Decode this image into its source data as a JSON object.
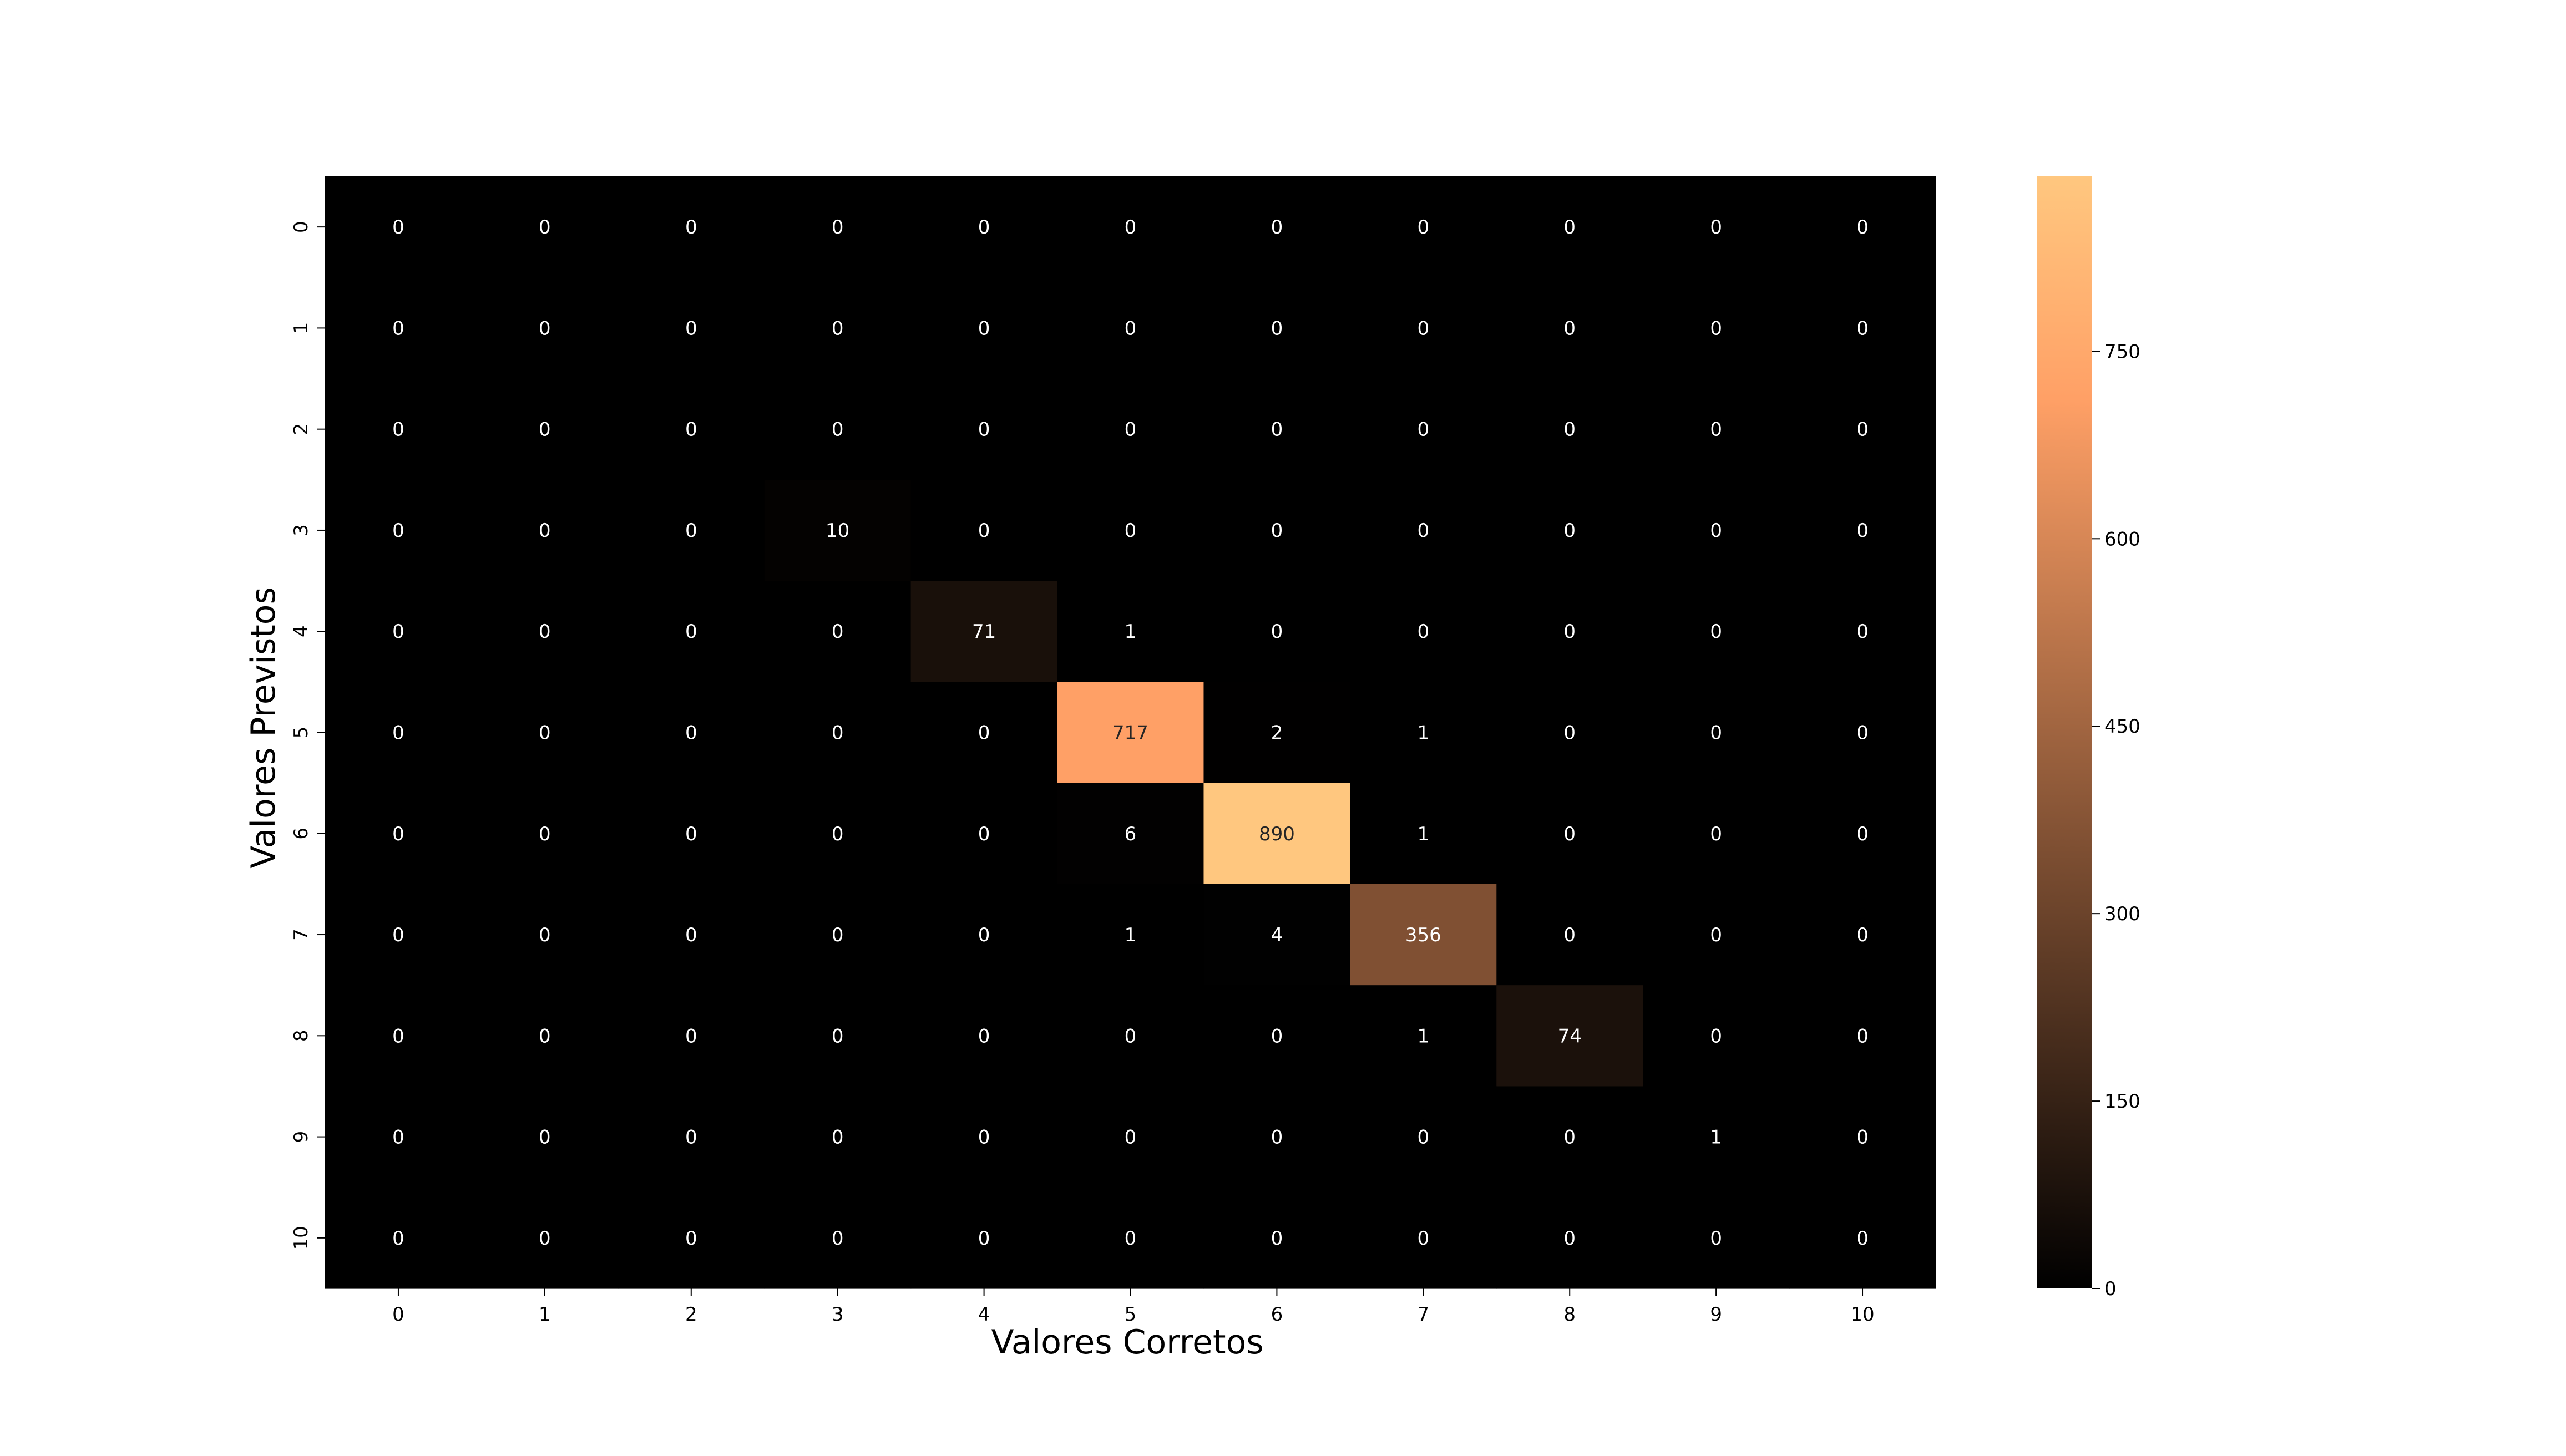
{
  "chart_data": {
    "type": "heatmap",
    "title": "",
    "xlabel": "Valores Corretos",
    "ylabel": "Valores Previstos",
    "x_categories": [
      "0",
      "1",
      "2",
      "3",
      "4",
      "5",
      "6",
      "7",
      "8",
      "9",
      "10"
    ],
    "y_categories": [
      "0",
      "1",
      "2",
      "3",
      "4",
      "5",
      "6",
      "7",
      "8",
      "9",
      "10"
    ],
    "matrix": [
      [
        0,
        0,
        0,
        0,
        0,
        0,
        0,
        0,
        0,
        0,
        0
      ],
      [
        0,
        0,
        0,
        0,
        0,
        0,
        0,
        0,
        0,
        0,
        0
      ],
      [
        0,
        0,
        0,
        0,
        0,
        0,
        0,
        0,
        0,
        0,
        0
      ],
      [
        0,
        0,
        0,
        10,
        0,
        0,
        0,
        0,
        0,
        0,
        0
      ],
      [
        0,
        0,
        0,
        0,
        71,
        1,
        0,
        0,
        0,
        0,
        0
      ],
      [
        0,
        0,
        0,
        0,
        0,
        717,
        2,
        1,
        0,
        0,
        0
      ],
      [
        0,
        0,
        0,
        0,
        0,
        6,
        890,
        1,
        0,
        0,
        0
      ],
      [
        0,
        0,
        0,
        0,
        0,
        1,
        4,
        356,
        0,
        0,
        0
      ],
      [
        0,
        0,
        0,
        0,
        0,
        0,
        0,
        1,
        74,
        0,
        0
      ],
      [
        0,
        0,
        0,
        0,
        0,
        0,
        0,
        0,
        0,
        1,
        0
      ],
      [
        0,
        0,
        0,
        0,
        0,
        0,
        0,
        0,
        0,
        0,
        0
      ]
    ],
    "colormap": "copper",
    "colorbar": {
      "vmin": 0,
      "vmax": 890,
      "ticks": [
        0,
        150,
        300,
        450,
        600,
        750
      ],
      "tick_labels": [
        "0",
        "150",
        "300",
        "450",
        "600",
        "750"
      ]
    },
    "grid": false,
    "legend": "colorbar-right"
  }
}
